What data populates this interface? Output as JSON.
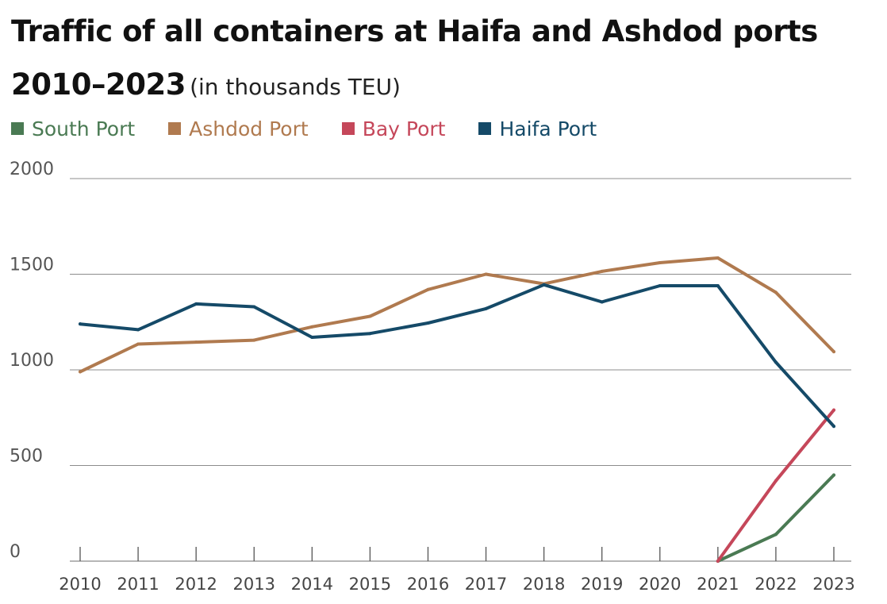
{
  "title": {
    "main": "Traffic of all containers at Haifa and Ashdod ports 2010–2023",
    "sub": "(in thousands TEU)"
  },
  "chart_data": {
    "type": "line",
    "title": "Traffic of all containers at Haifa and Ashdod ports 2010–2023 (in thousands TEU)",
    "xlabel": "",
    "ylabel": "",
    "x": [
      2010,
      2011,
      2012,
      2013,
      2014,
      2015,
      2016,
      2017,
      2018,
      2019,
      2020,
      2021,
      2022,
      2023
    ],
    "ylim": [
      0,
      2000
    ],
    "yticks": [
      0,
      500,
      1000,
      1500,
      2000
    ],
    "grid": true,
    "legend_position": "top-left",
    "series": [
      {
        "name": "South Port",
        "color": "#4a7a53",
        "x": [
          2021,
          2022,
          2023
        ],
        "values": [
          0,
          140,
          450
        ]
      },
      {
        "name": "Ashdod Port",
        "color": "#b07a4f",
        "x": [
          2010,
          2011,
          2012,
          2013,
          2014,
          2015,
          2016,
          2017,
          2018,
          2019,
          2020,
          2021,
          2022,
          2023
        ],
        "values": [
          990,
          1135,
          1145,
          1155,
          1225,
          1280,
          1420,
          1500,
          1450,
          1515,
          1560,
          1585,
          1405,
          1095
        ]
      },
      {
        "name": "Bay Port",
        "color": "#c5475a",
        "x": [
          2021,
          2022,
          2023
        ],
        "values": [
          0,
          420,
          790
        ]
      },
      {
        "name": "Haifa Port",
        "color": "#154a68",
        "x": [
          2010,
          2011,
          2012,
          2013,
          2014,
          2015,
          2016,
          2017,
          2018,
          2019,
          2020,
          2021,
          2022,
          2023
        ],
        "values": [
          1240,
          1210,
          1345,
          1330,
          1170,
          1190,
          1245,
          1320,
          1445,
          1355,
          1440,
          1440,
          1040,
          705
        ]
      }
    ]
  }
}
